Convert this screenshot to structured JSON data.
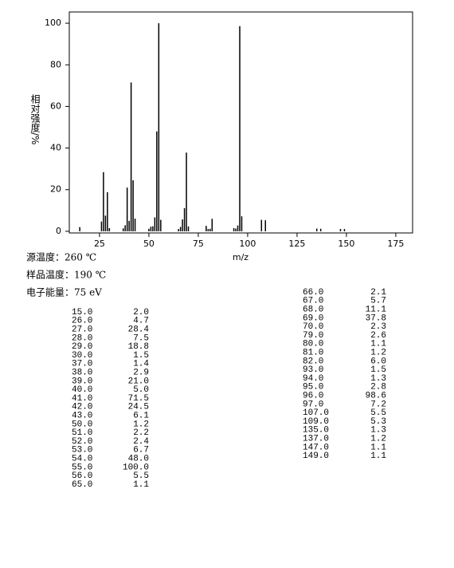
{
  "chart_data": {
    "type": "bar",
    "ylabel": "相对强度/%",
    "xlabel": "m/z",
    "x": [
      15,
      26,
      27,
      28,
      29,
      30,
      37,
      38,
      39,
      40,
      41,
      42,
      43,
      50,
      51,
      52,
      53,
      54,
      55,
      56,
      65,
      66,
      67,
      68,
      69,
      70,
      79,
      80,
      81,
      82,
      93,
      94,
      95,
      96,
      97,
      107,
      109,
      135,
      137,
      147,
      149
    ],
    "values": [
      2.0,
      4.7,
      28.4,
      7.5,
      18.8,
      1.5,
      1.4,
      2.9,
      21.0,
      5.0,
      71.5,
      24.5,
      6.1,
      1.2,
      2.2,
      2.4,
      6.7,
      48.0,
      100.0,
      5.5,
      1.1,
      2.1,
      5.7,
      11.1,
      37.8,
      2.3,
      2.6,
      1.1,
      1.2,
      6.0,
      1.5,
      1.3,
      2.8,
      98.6,
      7.2,
      5.5,
      5.3,
      1.3,
      1.2,
      1.1,
      1.1
    ],
    "color": "#000000",
    "xlim": [
      9.7,
      183.5
    ],
    "xticks": [
      25,
      50,
      75,
      100,
      125,
      150,
      175
    ],
    "ylim": [
      -0.8,
      105.4
    ],
    "yticks": [
      0,
      20,
      40,
      60,
      80,
      100
    ]
  },
  "conditions": [
    "源温度：260 ℃",
    "样品温度：190 ℃",
    "电子能量：75 eV"
  ],
  "table": {
    "columns": [
      [
        [
          "15.0",
          "2.0"
        ],
        [
          "26.0",
          "4.7"
        ],
        [
          "27.0",
          "28.4"
        ],
        [
          "28.0",
          "7.5"
        ],
        [
          "29.0",
          "18.8"
        ],
        [
          "30.0",
          "1.5"
        ],
        [
          "37.0",
          "1.4"
        ],
        [
          "38.0",
          "2.9"
        ],
        [
          "39.0",
          "21.0"
        ],
        [
          "40.0",
          "5.0"
        ],
        [
          "41.0",
          "71.5"
        ],
        [
          "42.0",
          "24.5"
        ],
        [
          "43.0",
          "6.1"
        ],
        [
          "50.0",
          "1.2"
        ],
        [
          "51.0",
          "2.2"
        ],
        [
          "52.0",
          "2.4"
        ],
        [
          "53.0",
          "6.7"
        ],
        [
          "54.0",
          "48.0"
        ],
        [
          "55.0",
          "100.0"
        ],
        [
          "56.0",
          "5.5"
        ],
        [
          "65.0",
          "1.1"
        ]
      ],
      [
        [
          "66.0",
          "2.1"
        ],
        [
          "67.0",
          "5.7"
        ],
        [
          "68.0",
          "11.1"
        ],
        [
          "69.0",
          "37.8"
        ],
        [
          "70.0",
          "2.3"
        ],
        [
          "79.0",
          "2.6"
        ],
        [
          "80.0",
          "1.1"
        ],
        [
          "81.0",
          "1.2"
        ],
        [
          "82.0",
          "6.0"
        ],
        [
          "93.0",
          "1.5"
        ],
        [
          "94.0",
          "1.3"
        ],
        [
          "95.0",
          "2.8"
        ],
        [
          "96.0",
          "98.6"
        ],
        [
          "97.0",
          "7.2"
        ],
        [
          "107.0",
          "5.5"
        ],
        [
          "109.0",
          "5.3"
        ],
        [
          "135.0",
          "1.3"
        ],
        [
          "137.0",
          "1.2"
        ],
        [
          "147.0",
          "1.1"
        ],
        [
          "149.0",
          "1.1"
        ]
      ]
    ]
  }
}
